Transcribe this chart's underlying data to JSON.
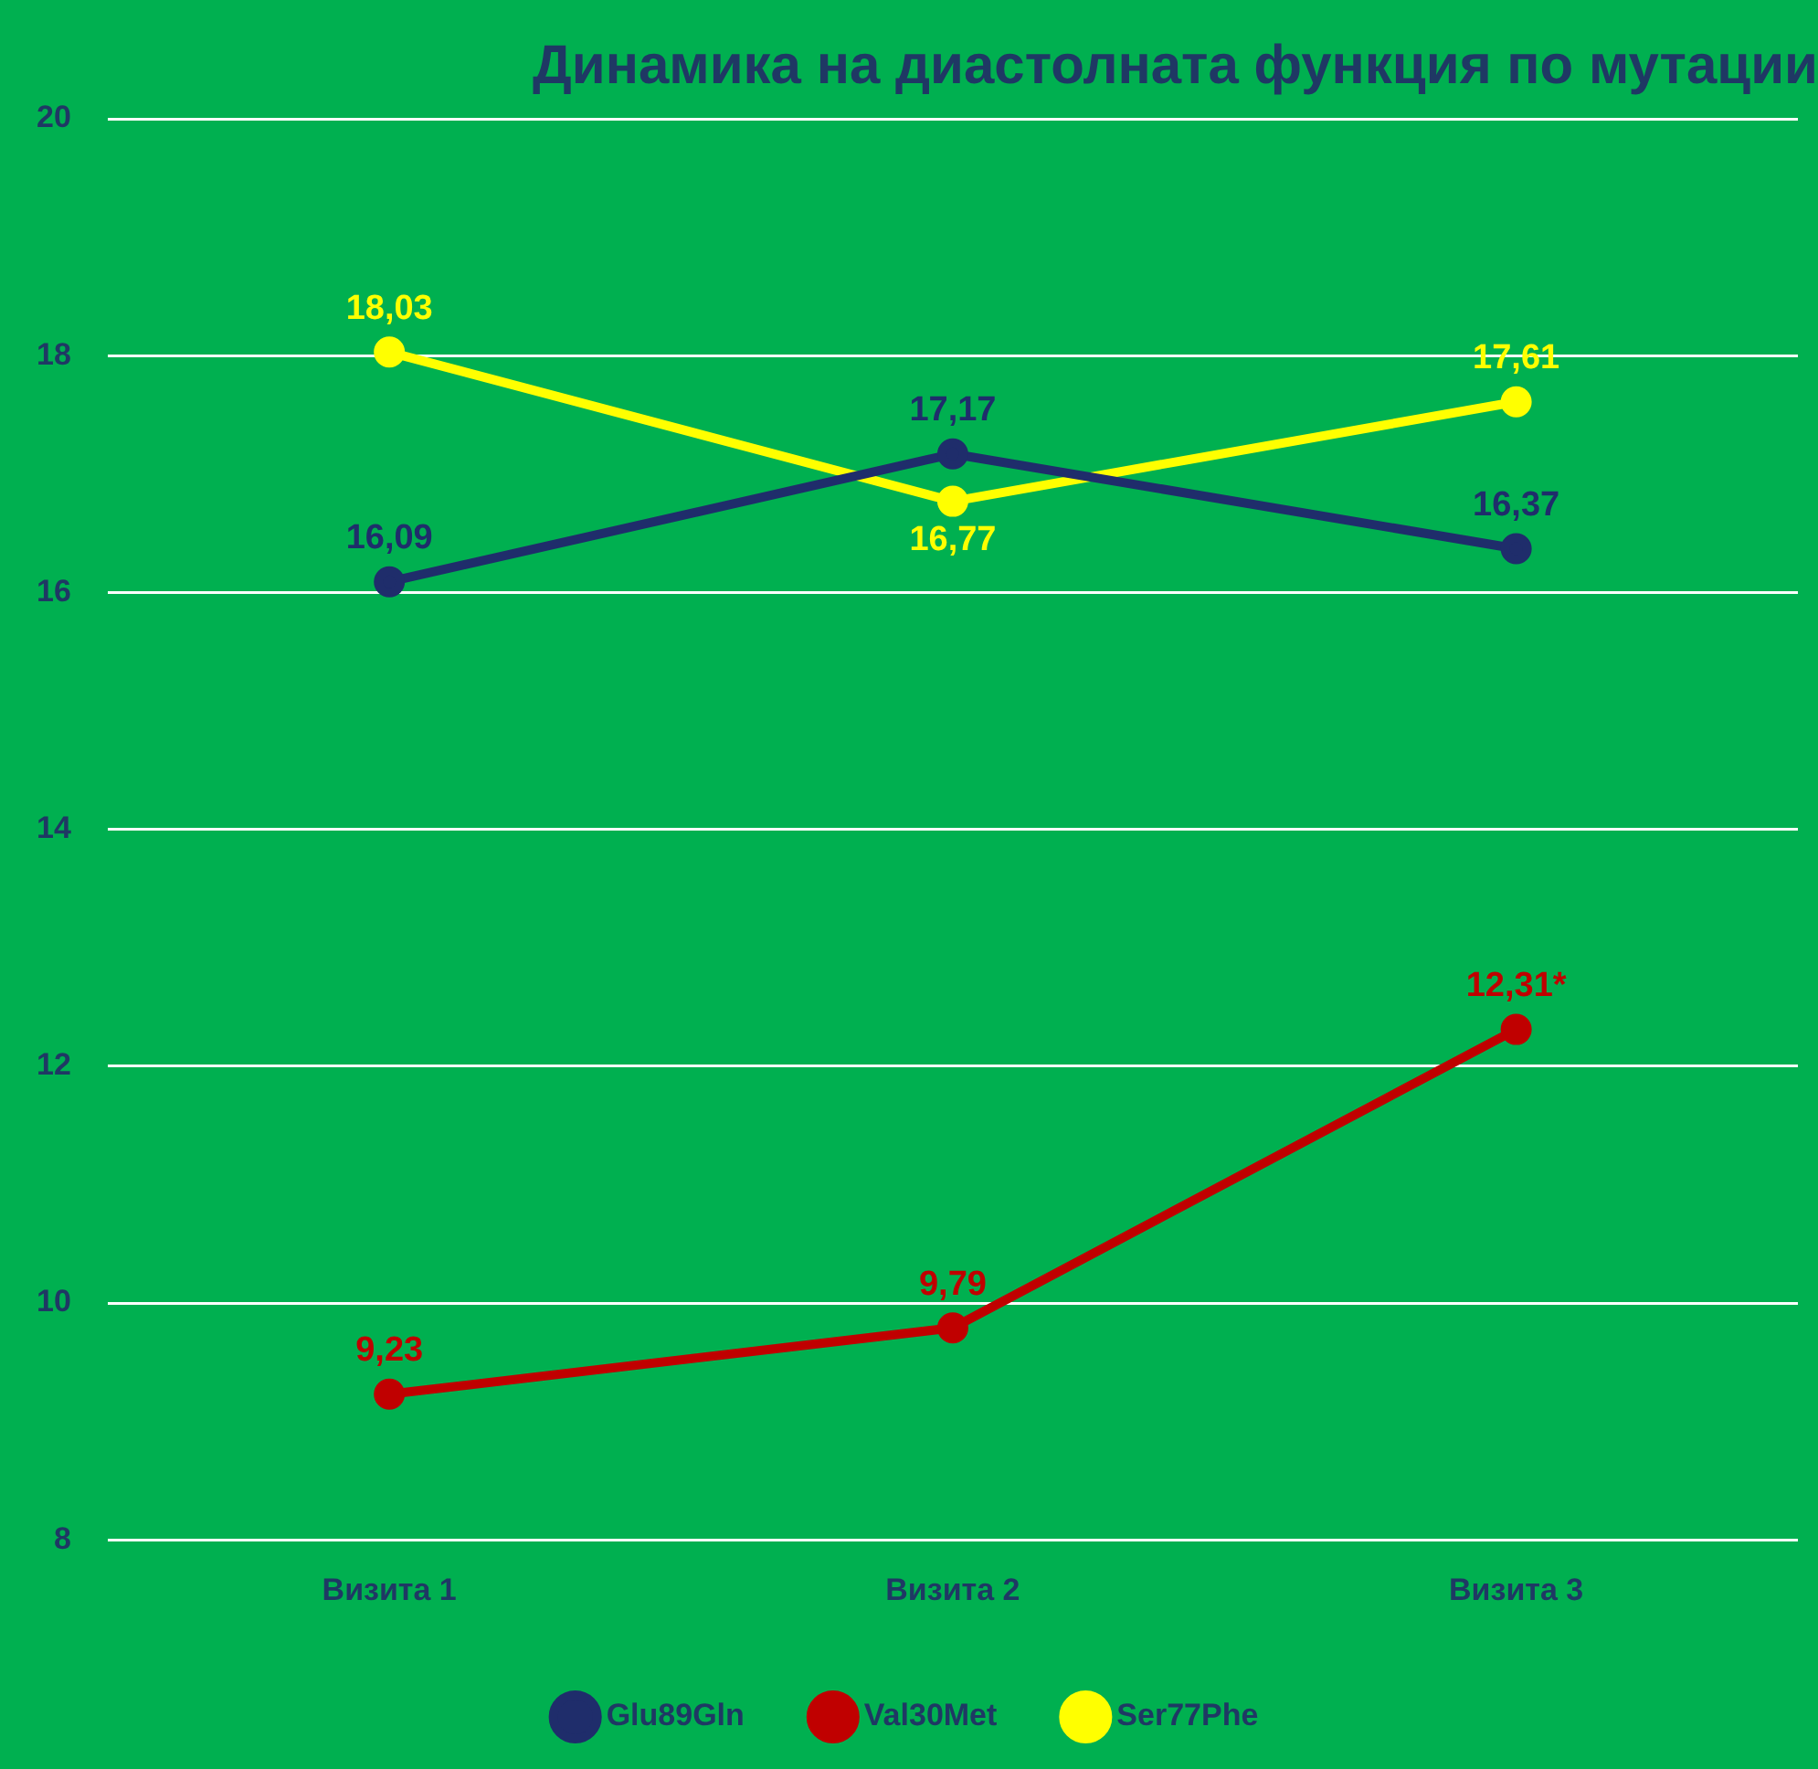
{
  "chart_data": {
    "type": "line",
    "title": "Динамика на диастолната функция по мутации",
    "categories": [
      "Визита 1",
      "Визита 2",
      "Визита 3"
    ],
    "series": [
      {
        "name": "Glu89Gln",
        "color": "#1f2d6b",
        "values": [
          16.09,
          17.17,
          16.37
        ],
        "value_labels": [
          "16,09",
          "17,17",
          "16,37"
        ]
      },
      {
        "name": "Val30Met",
        "color": "#c00000",
        "values": [
          9.23,
          9.79,
          12.31
        ],
        "value_labels": [
          "9,23",
          "9,79",
          "12,31*"
        ]
      },
      {
        "name": "Ser77Phe",
        "color": "#ffff00",
        "values": [
          18.03,
          16.77,
          17.61
        ],
        "value_labels": [
          "18,03",
          "16,77",
          "17,61"
        ]
      }
    ],
    "ylim": [
      8,
      20
    ],
    "yticks": [
      8,
      10,
      12,
      14,
      16,
      18,
      20
    ],
    "grid": "y",
    "legend": "bottom",
    "marker": "circle",
    "line_style": "solid"
  }
}
